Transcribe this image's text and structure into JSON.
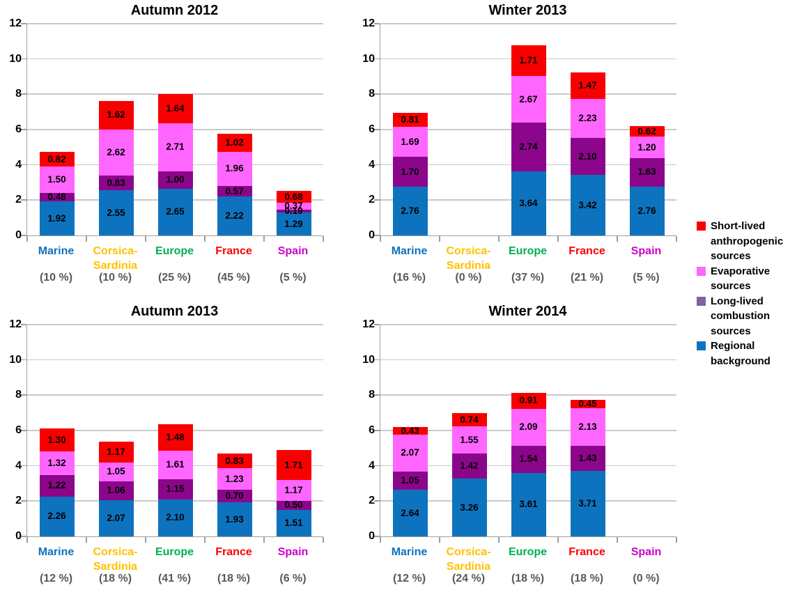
{
  "page": {
    "background": "#ffffff"
  },
  "percent_color": "#595959",
  "legend": {
    "position": "right",
    "items": [
      {
        "label": "Short-lived anthropogenic sources",
        "color": "#f90000"
      },
      {
        "label": "Evaporative sources",
        "color": "#ff66ff"
      },
      {
        "label": "Long-lived combustion sources",
        "color": "#8064a2"
      },
      {
        "label": "Regional background",
        "color": "#0d73be"
      }
    ]
  },
  "chart_data": [
    {
      "type": "bar",
      "stacked": true,
      "title": "Autumn 2012",
      "ylim": [
        0,
        12
      ],
      "y_ticks": [
        0,
        2,
        4,
        6,
        8,
        10,
        12
      ],
      "grid": true,
      "categories": [
        {
          "label": "Marine",
          "color": "#0e72be",
          "pct": "(10 %)"
        },
        {
          "label": "Corsica-\nSardinia",
          "color": "#ffc000",
          "pct": "(10 %)"
        },
        {
          "label": "Europe",
          "color": "#00b050",
          "pct": "(25 %)"
        },
        {
          "label": "France",
          "color": "#ff0000",
          "pct": "(45 %)"
        },
        {
          "label": "Spain",
          "color": "#cc00cc",
          "pct": "(5 %)"
        }
      ],
      "series": [
        {
          "name": "Regional background",
          "color": "#0d73be",
          "values": [
            "1.92",
            "2.55",
            "2.65",
            "2.22",
            "1.29"
          ]
        },
        {
          "name": "Long-lived combustion sources",
          "color": "#8b068b",
          "values": [
            "0.48",
            "0.83",
            "1.00",
            "0.57",
            "0.19"
          ]
        },
        {
          "name": "Evaporative sources",
          "color": "#ff66ff",
          "values": [
            "1.50",
            "2.62",
            "2.71",
            "1.96",
            "0.37"
          ]
        },
        {
          "name": "Short-lived anthropogenic sources",
          "color": "#f90000",
          "values": [
            "0.82",
            "1.62",
            "1.64",
            "1.02",
            "0.68"
          ]
        }
      ]
    },
    {
      "type": "bar",
      "stacked": true,
      "title": "Winter 2013",
      "ylim": [
        0,
        12
      ],
      "y_ticks": [
        0,
        2,
        4,
        6,
        8,
        10,
        12
      ],
      "grid": true,
      "categories": [
        {
          "label": "Marine",
          "color": "#0e72be",
          "pct": "(16 %)"
        },
        {
          "label": "Corsica-\nSardinia",
          "color": "#ffc000",
          "pct": "(0 %)"
        },
        {
          "label": "Europe",
          "color": "#00b050",
          "pct": "(37 %)"
        },
        {
          "label": "France",
          "color": "#ff0000",
          "pct": "(21 %)"
        },
        {
          "label": "Spain",
          "color": "#cc00cc",
          "pct": "(5 %)"
        }
      ],
      "series": [
        {
          "name": "Regional background",
          "color": "#0d73be",
          "values": [
            "2.76",
            null,
            "3.64",
            "3.42",
            "2.76"
          ]
        },
        {
          "name": "Long-lived combustion sources",
          "color": "#8b068b",
          "values": [
            "1.70",
            null,
            "2.74",
            "2.10",
            "1.63"
          ]
        },
        {
          "name": "Evaporative sources",
          "color": "#ff66ff",
          "values": [
            "1.69",
            null,
            "2.67",
            "2.23",
            "1.20"
          ]
        },
        {
          "name": "Short-lived anthropogenic sources",
          "color": "#f90000",
          "values": [
            "0.81",
            null,
            "1.71",
            "1.47",
            "0.62"
          ]
        }
      ]
    },
    {
      "type": "bar",
      "stacked": true,
      "title": "Autumn 2013",
      "ylim": [
        0,
        12
      ],
      "y_ticks": [
        0,
        2,
        4,
        6,
        8,
        10,
        12
      ],
      "grid": true,
      "categories": [
        {
          "label": "Marine",
          "color": "#0e72be",
          "pct": "(12 %)"
        },
        {
          "label": "Corsica-\nSardinia",
          "color": "#ffc000",
          "pct": "(18 %)"
        },
        {
          "label": "Europe",
          "color": "#00b050",
          "pct": "(41 %)"
        },
        {
          "label": "France",
          "color": "#ff0000",
          "pct": "(18 %)"
        },
        {
          "label": "Spain",
          "color": "#cc00cc",
          "pct": "(6 %)"
        }
      ],
      "series": [
        {
          "name": "Regional background",
          "color": "#0d73be",
          "values": [
            "2.26",
            "2.07",
            "2.10",
            "1.93",
            "1.51"
          ]
        },
        {
          "name": "Long-lived combustion sources",
          "color": "#8b068b",
          "values": [
            "1.22",
            "1.06",
            "1.15",
            "0.70",
            "0.50"
          ]
        },
        {
          "name": "Evaporative sources",
          "color": "#ff66ff",
          "values": [
            "1.32",
            "1.05",
            "1.61",
            "1.23",
            "1.17"
          ]
        },
        {
          "name": "Short-lived anthropogenic sources",
          "color": "#f90000",
          "values": [
            "1.30",
            "1.17",
            "1.48",
            "0.83",
            "1.71"
          ]
        }
      ]
    },
    {
      "type": "bar",
      "stacked": true,
      "title": "Winter 2014",
      "ylim": [
        0,
        12
      ],
      "y_ticks": [
        0,
        2,
        4,
        6,
        8,
        10,
        12
      ],
      "grid": true,
      "categories": [
        {
          "label": "Marine",
          "color": "#0e72be",
          "pct": "(12 %)"
        },
        {
          "label": "Corsica-\nSardinia",
          "color": "#ffc000",
          "pct": "(24 %)"
        },
        {
          "label": "Europe",
          "color": "#00b050",
          "pct": "(18 %)"
        },
        {
          "label": "France",
          "color": "#ff0000",
          "pct": "(18 %)"
        },
        {
          "label": "Spain",
          "color": "#cc00cc",
          "pct": "(0 %)"
        }
      ],
      "series": [
        {
          "name": "Regional background",
          "color": "#0d73be",
          "values": [
            "2.64",
            "3.26",
            "3.61",
            "3.71",
            null
          ]
        },
        {
          "name": "Long-lived combustion sources",
          "color": "#8b068b",
          "values": [
            "1.05",
            "1.42",
            "1.54",
            "1.43",
            null
          ]
        },
        {
          "name": "Evaporative sources",
          "color": "#ff66ff",
          "values": [
            "2.07",
            "1.55",
            "2.09",
            "2.13",
            null
          ]
        },
        {
          "name": "Short-lived anthropogenic sources",
          "color": "#f90000",
          "values": [
            "0.43",
            "0.74",
            "0.91",
            "0.45",
            null
          ]
        }
      ]
    }
  ]
}
